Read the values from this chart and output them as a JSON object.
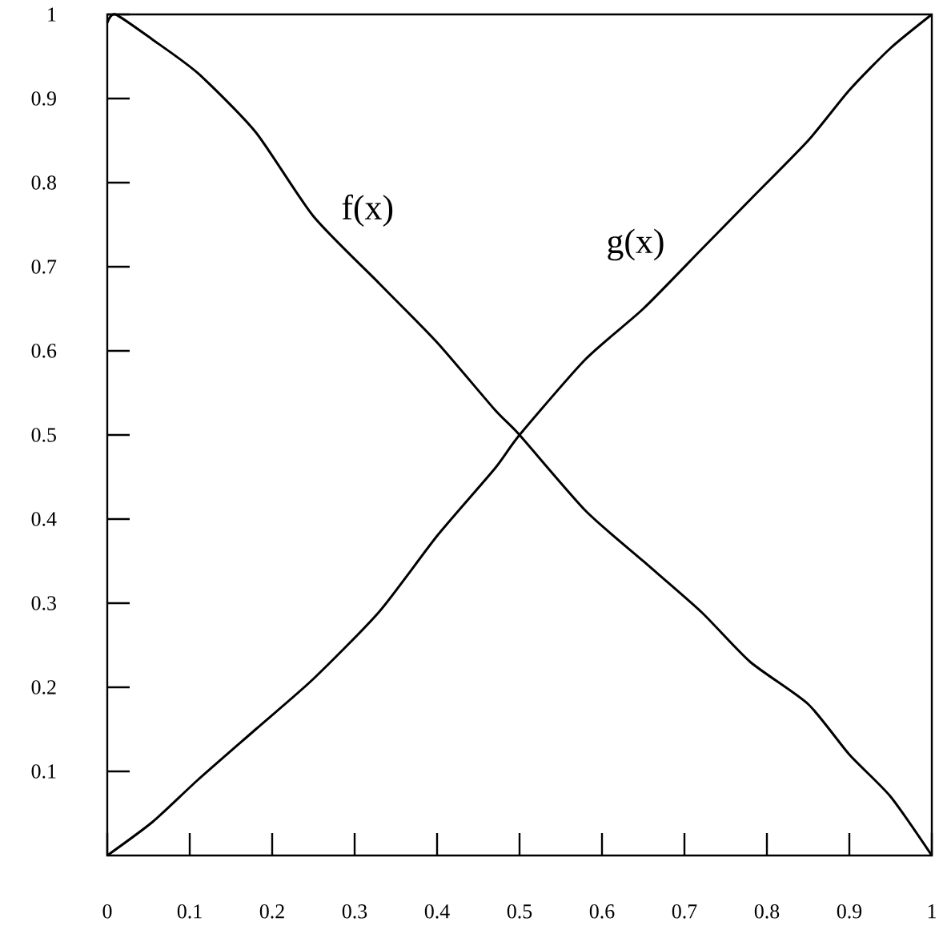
{
  "chart_data": {
    "type": "line",
    "series": [
      {
        "name": "f(x)",
        "color": "#000000",
        "x": [
          0,
          0.01,
          0.055,
          0.11,
          0.18,
          0.25,
          0.33,
          0.4,
          0.47,
          0.5,
          0.58,
          0.65,
          0.72,
          0.78,
          0.85,
          0.9,
          0.95,
          1
        ],
        "values": [
          0.99,
          1.0,
          0.97,
          0.93,
          0.86,
          0.76,
          0.68,
          0.61,
          0.53,
          0.5,
          0.41,
          0.35,
          0.29,
          0.23,
          0.18,
          0.12,
          0.07,
          0
        ]
      },
      {
        "name": "g(x)",
        "color": "#000000",
        "x": [
          0,
          0.055,
          0.11,
          0.18,
          0.25,
          0.33,
          0.4,
          0.47,
          0.5,
          0.58,
          0.65,
          0.72,
          0.78,
          0.85,
          0.9,
          0.95,
          1
        ],
        "values": [
          0,
          0.04,
          0.09,
          0.15,
          0.21,
          0.29,
          0.38,
          0.46,
          0.5,
          0.59,
          0.65,
          0.72,
          0.78,
          0.85,
          0.91,
          0.96,
          1
        ]
      }
    ],
    "xlim": [
      0,
      1
    ],
    "ylim": [
      0,
      1
    ],
    "xticks": [
      0,
      0.1,
      0.2,
      0.3,
      0.4,
      0.5,
      0.6,
      0.7,
      0.8,
      0.9,
      1
    ],
    "yticks": [
      0.1,
      0.2,
      0.3,
      0.4,
      0.5,
      0.6,
      0.7,
      0.8,
      0.9,
      1
    ],
    "marker": "none"
  }
}
